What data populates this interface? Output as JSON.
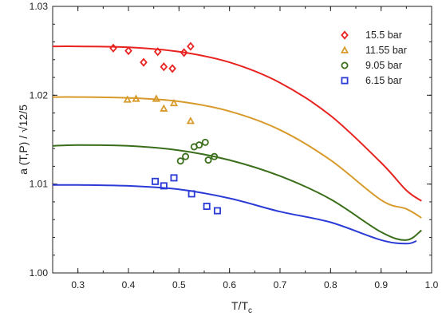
{
  "chart_data": {
    "type": "scatter",
    "title": "",
    "xlabel": "T/T",
    "xlabel_sub": "c",
    "ylabel": "a (T,P) / √12/5",
    "xlim": [
      0.25,
      1.0
    ],
    "ylim": [
      1.0,
      1.03
    ],
    "x_ticks": [
      "0.3",
      "0.4",
      "0.5",
      "0.6",
      "0.7",
      "0.8",
      "0.9",
      "1.0"
    ],
    "y_ticks": [
      "1.00",
      "1.01",
      "1.02",
      "1.03"
    ],
    "grid": false,
    "legend_position": "top-right",
    "series": [
      {
        "name": "15.5 bar",
        "color": "#e8231f",
        "marker": "diamond",
        "points": [
          [
            0.37,
            1.0253
          ],
          [
            0.4,
            1.025
          ],
          [
            0.43,
            1.0237
          ],
          [
            0.458,
            1.0249
          ],
          [
            0.47,
            1.0232
          ],
          [
            0.487,
            1.023
          ],
          [
            0.51,
            1.0248
          ],
          [
            0.523,
            1.0255
          ]
        ],
        "curve": [
          [
            0.25,
            1.0255
          ],
          [
            0.3,
            1.0255
          ],
          [
            0.4,
            1.0254
          ],
          [
            0.5,
            1.0249
          ],
          [
            0.6,
            1.0237
          ],
          [
            0.7,
            1.0214
          ],
          [
            0.8,
            1.0177
          ],
          [
            0.9,
            1.0124
          ],
          [
            0.95,
            1.0093
          ],
          [
            0.98,
            1.0081
          ]
        ]
      },
      {
        "name": "11.55 bar",
        "color": "#d79a2b",
        "marker": "triangle",
        "points": [
          [
            0.398,
            1.0195
          ],
          [
            0.415,
            1.0196
          ],
          [
            0.455,
            1.0196
          ],
          [
            0.47,
            1.0185
          ],
          [
            0.49,
            1.0191
          ],
          [
            0.523,
            1.0171
          ]
        ],
        "curve": [
          [
            0.25,
            1.0198
          ],
          [
            0.3,
            1.0198
          ],
          [
            0.4,
            1.0197
          ],
          [
            0.5,
            1.0193
          ],
          [
            0.6,
            1.0182
          ],
          [
            0.7,
            1.0161
          ],
          [
            0.8,
            1.0127
          ],
          [
            0.9,
            1.0082
          ],
          [
            0.95,
            1.0072
          ],
          [
            0.98,
            1.0062
          ]
        ]
      },
      {
        "name": "9.05 bar",
        "color": "#3a6e1a",
        "marker": "circle",
        "points": [
          [
            0.503,
            1.0126
          ],
          [
            0.513,
            1.0131
          ],
          [
            0.53,
            1.0142
          ],
          [
            0.54,
            1.0144
          ],
          [
            0.552,
            1.0147
          ],
          [
            0.558,
            1.0127
          ],
          [
            0.57,
            1.0131
          ]
        ],
        "curve": [
          [
            0.25,
            1.0143
          ],
          [
            0.3,
            1.0144
          ],
          [
            0.4,
            1.0143
          ],
          [
            0.5,
            1.0138
          ],
          [
            0.6,
            1.0127
          ],
          [
            0.7,
            1.0109
          ],
          [
            0.8,
            1.0083
          ],
          [
            0.9,
            1.0046
          ],
          [
            0.95,
            1.0037
          ],
          [
            0.98,
            1.0048
          ]
        ]
      },
      {
        "name": "6.15 bar",
        "color": "#2a3bd6",
        "marker": "square",
        "points": [
          [
            0.453,
            1.0103
          ],
          [
            0.47,
            1.0098
          ],
          [
            0.49,
            1.0107
          ],
          [
            0.525,
            1.0089
          ],
          [
            0.555,
            1.0075
          ],
          [
            0.576,
            1.007
          ]
        ],
        "curve": [
          [
            0.25,
            1.0099
          ],
          [
            0.3,
            1.0099
          ],
          [
            0.4,
            1.0098
          ],
          [
            0.5,
            1.0094
          ],
          [
            0.6,
            1.0084
          ],
          [
            0.7,
            1.0069
          ],
          [
            0.8,
            1.0057
          ],
          [
            0.9,
            1.0037
          ],
          [
            0.95,
            1.0033
          ],
          [
            0.97,
            1.0036
          ]
        ]
      }
    ]
  }
}
